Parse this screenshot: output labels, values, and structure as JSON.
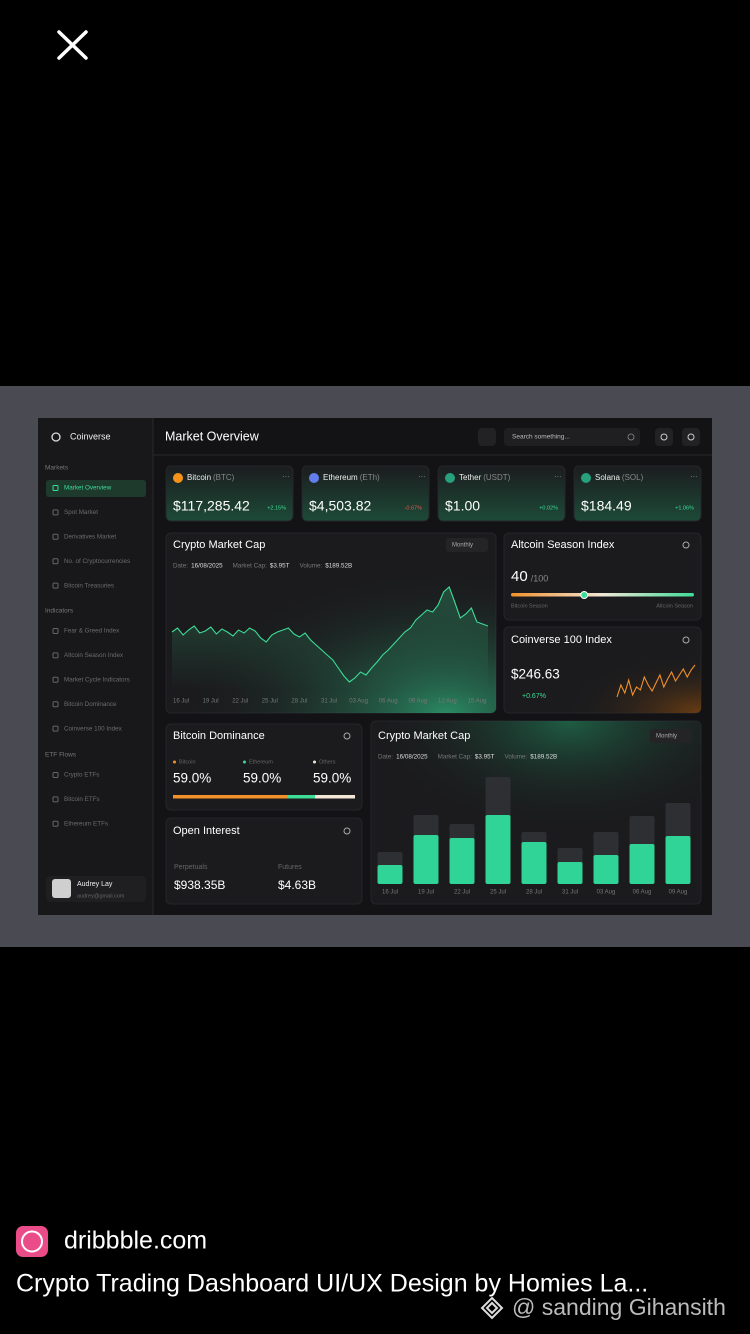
{
  "browser": {
    "site": "dribbble.com",
    "title": "Crypto Trading Dashboard UI/UX Design by Homies La...",
    "watermark": "@ sanding Gihansith"
  },
  "dashboard": {
    "brand": "Coinverse",
    "page_title": "Market Overview",
    "search_placeholder": "Search something...",
    "sidebar": [
      {
        "title": "Markets",
        "items": [
          "Market Overview",
          "Spot Market",
          "Derivatives Market",
          "No. of Cryptocurrencies",
          "Bitcoin Treasuries"
        ]
      },
      {
        "title": "Indicators",
        "items": [
          "Fear & Greed Index",
          "Altcoin Season Index",
          "Market Cycle Indicators",
          "Bitcoin Dominance",
          "Coinverse 100 Index"
        ]
      },
      {
        "title": "ETF Flows",
        "items": [
          "Crypto ETFs",
          "Bitcoin ETFs",
          "Ethereum ETFs"
        ]
      }
    ],
    "user": {
      "name": "Audrey Lay",
      "email": "audrey@gmail.com"
    },
    "coins": [
      {
        "name": "Bitcoin",
        "ticker": "(BTC)",
        "price": "$117,285.42",
        "change": "+2.15%",
        "color": "#f7931a"
      },
      {
        "name": "Ethereum",
        "ticker": "(ETh)",
        "price": "$4,503.82",
        "change": "-0.67%",
        "color": "#627eea"
      },
      {
        "name": "Tether",
        "ticker": "(USDT)",
        "price": "$1.00",
        "change": "+0.02%",
        "color": "#26a17b"
      },
      {
        "name": "Solana",
        "ticker": "(SOL)",
        "price": "$184.49",
        "change": "+1.06%",
        "color": "#26a17b"
      }
    ],
    "market_cap": {
      "type": "line",
      "title": "Crypto Market Cap",
      "period": "Monthly",
      "details": [
        {
          "label": "Date:",
          "value": "16/08/2025"
        },
        {
          "label": "Market Cap:",
          "value": "$3.95T"
        },
        {
          "label": "Volume:",
          "value": "$189.52B"
        }
      ],
      "categories": [
        "16 Jul",
        "19 Jul",
        "22 Jul",
        "25 Jul",
        "28 Jul",
        "31 Jul",
        "03 Aug",
        "06 Aug",
        "09 Aug",
        "12 Aug",
        "15 Aug"
      ],
      "values": [
        58,
        62,
        55,
        60,
        64,
        57,
        59,
        63,
        56,
        61,
        58,
        54,
        60,
        57,
        62,
        59,
        52,
        48,
        55,
        58,
        60,
        62,
        56,
        53,
        57,
        50,
        45,
        40,
        35,
        30,
        22,
        14,
        8,
        12,
        18,
        15,
        22,
        28,
        35,
        40,
        46,
        52,
        58,
        62,
        70,
        75,
        80,
        78,
        85,
        98,
        103,
        88,
        72,
        76,
        82,
        68,
        66,
        64
      ],
      "color": "#3ddc97"
    },
    "altcoin": {
      "title": "Altcoin Season Index",
      "value": "40",
      "max": "/100",
      "left": "Bitcoin Season",
      "right": "Altcoin Season",
      "position": 40
    },
    "index100": {
      "type": "line",
      "title": "Coinverse 100 Index",
      "price": "$246.63",
      "change": "+0.67%",
      "values": [
        8,
        20,
        12,
        25,
        10,
        18,
        15,
        28,
        20,
        14,
        22,
        30,
        18,
        26,
        33,
        24,
        30,
        36,
        28,
        35,
        40
      ],
      "color": "#f0912c"
    },
    "dominance": {
      "title": "Bitcoin Dominance",
      "items": [
        {
          "name": "Bitcoin",
          "value": "59.0%",
          "color": "#f0912c"
        },
        {
          "name": "Ethereum",
          "value": "59.0%",
          "color": "#3ddc97"
        },
        {
          "name": "Others",
          "value": "59.0%",
          "color": "#f2e6d6"
        }
      ]
    },
    "open_interest": {
      "title": "Open Interest",
      "items": [
        {
          "label": "Perpetuals",
          "value": "$938.35B"
        },
        {
          "label": "Futures",
          "value": "$4.63B"
        }
      ]
    },
    "bar_cap": {
      "type": "bar",
      "title": "Crypto Market Cap",
      "period": "Monthly",
      "details": [
        {
          "label": "Date:",
          "value": "16/08/2025"
        },
        {
          "label": "Market Cap:",
          "value": "$3.95T"
        },
        {
          "label": "Volume:",
          "value": "$189.52B"
        }
      ],
      "categories": [
        "16 Jul",
        "19 Jul",
        "22 Jul",
        "25 Jul",
        "28 Jul",
        "31 Jul",
        "03 Aug",
        "06 Aug",
        "09 Aug"
      ],
      "series": [
        {
          "color": "#2e2f33",
          "values": [
            32,
            69,
            60,
            107,
            52,
            36,
            52,
            68,
            81
          ]
        },
        {
          "color": "#2fd496",
          "values": [
            19,
            49,
            46,
            69,
            42,
            22,
            29,
            40,
            48
          ]
        }
      ]
    }
  }
}
